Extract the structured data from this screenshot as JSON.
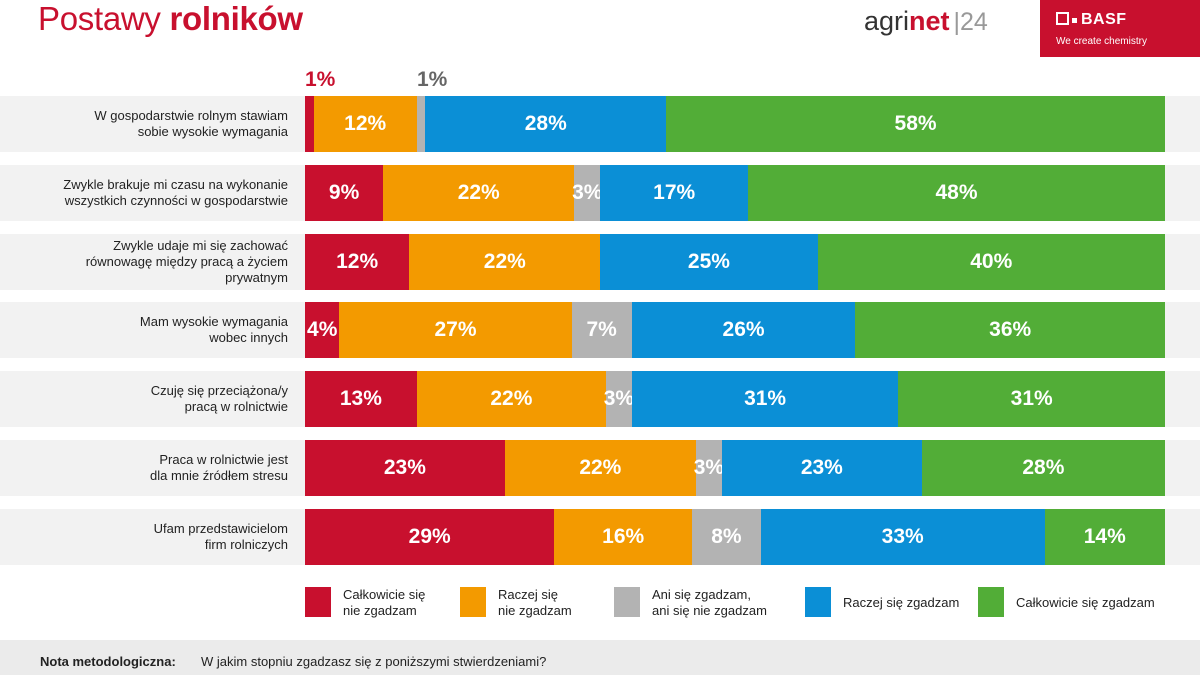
{
  "header": {
    "title_light": "Postawy",
    "title_bold": "rolników",
    "brand": {
      "agri": "agri",
      "net": "net",
      "sep": "|24"
    },
    "basf": {
      "logo": "BASF",
      "tagline": "We create chemistry"
    }
  },
  "colors": {
    "red": "#c8102e",
    "orange": "#f39a00",
    "gray": "#b3b3b3",
    "blue": "#0b8fd6",
    "green": "#52ad37"
  },
  "chart_data": {
    "type": "bar",
    "orientation": "horizontal",
    "stacked": true,
    "categories": [
      "W gospodarstwie rolnym stawiam sobie wysokie wymagania",
      "Zwykle brakuje mi czasu na wykonanie wszystkich czynności w gospodarstwie",
      "Zwykle udaje mi się zachować równowagę między pracą a życiem prywatnym",
      "Mam wysokie wymagania wobec innych",
      "Czuję się przeciążona/y pracą w rolnictwie",
      "Praca w rolnictwie jest dla mnie źródłem stresu",
      "Ufam przedstawicielom firm rolniczych"
    ],
    "category_lines": [
      [
        "W gospodarstwie rolnym stawiam",
        "sobie wysokie wymagania"
      ],
      [
        "Zwykle brakuje mi czasu na wykonanie",
        "wszystkich czynności w gospodarstwie"
      ],
      [
        "Zwykle udaje mi się zachować",
        "równowagę między pracą a życiem",
        "prywatnym"
      ],
      [
        "Mam wysokie wymagania",
        "wobec innych"
      ],
      [
        "Czuję się przeciążona/y",
        "pracą w rolnictwie"
      ],
      [
        "Praca w rolnictwie jest",
        "dla mnie źródłem stresu"
      ],
      [
        "Ufam przedstawicielom",
        "firm rolniczych"
      ]
    ],
    "series": [
      {
        "name": "Całkowicie się nie zgadzam",
        "legend_lines": [
          "Całkowicie się",
          "nie zgadzam"
        ],
        "color": "#c8102e",
        "values": [
          1,
          9,
          12,
          4,
          13,
          23,
          29
        ]
      },
      {
        "name": "Raczej się nie zgadzam",
        "legend_lines": [
          "Raczej się",
          "nie zgadzam"
        ],
        "color": "#f39a00",
        "values": [
          12,
          22,
          22,
          27,
          22,
          22,
          16
        ]
      },
      {
        "name": "Ani się zgadzam, ani się nie zgadzam",
        "legend_lines": [
          "Ani się zgadzam,",
          "ani się nie zgadzam"
        ],
        "color": "#b3b3b3",
        "values": [
          1,
          3,
          0,
          7,
          3,
          3,
          8
        ]
      },
      {
        "name": "Raczej się zgadzam",
        "legend_lines": [
          "Raczej się zgadzam"
        ],
        "color": "#0b8fd6",
        "values": [
          28,
          17,
          25,
          26,
          31,
          23,
          33
        ]
      },
      {
        "name": "Całkowicie się zgadzam",
        "legend_lines": [
          "Całkowicie się zgadzam"
        ],
        "color": "#52ad37",
        "values": [
          58,
          48,
          40,
          36,
          31,
          28,
          14
        ]
      }
    ],
    "outside_labels": [
      {
        "row": 0,
        "series": 0,
        "text": "1%",
        "color": "#c8102e"
      },
      {
        "row": 0,
        "series": 2,
        "text": "1%",
        "color": "#666666"
      }
    ],
    "unit": "%",
    "xlim": [
      0,
      100
    ]
  },
  "footer": {
    "label": "Nota metodologiczna:",
    "question": "W jakim stopniu zgadzasz się z poniższymi stwierdzeniami?"
  }
}
